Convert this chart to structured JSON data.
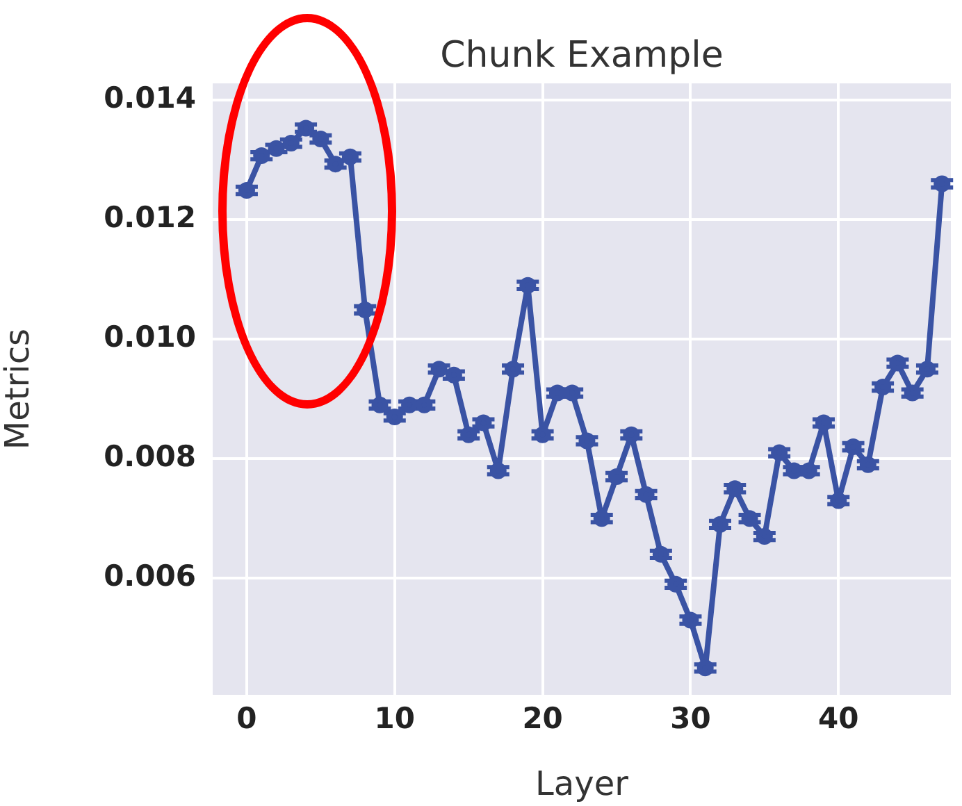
{
  "chart_data": {
    "type": "line",
    "title": "Chunk Example",
    "xlabel": "Layer",
    "ylabel": "Metrics",
    "x": [
      0,
      1,
      2,
      3,
      4,
      5,
      6,
      7,
      8,
      9,
      10,
      11,
      12,
      13,
      14,
      15,
      16,
      17,
      18,
      19,
      20,
      21,
      22,
      23,
      24,
      25,
      26,
      27,
      28,
      29,
      30,
      31,
      32,
      33,
      34,
      35,
      36,
      37,
      38,
      39,
      40,
      41,
      42,
      43,
      44,
      45,
      46,
      47
    ],
    "series": [
      {
        "color": "#3a53a4",
        "values": [
          0.01249,
          0.01307,
          0.01319,
          0.01328,
          0.01353,
          0.01335,
          0.01293,
          0.01305,
          0.01049,
          0.0089,
          0.0087,
          0.0089,
          0.0089,
          0.0095,
          0.0094,
          0.0084,
          0.0086,
          0.0078,
          0.0095,
          0.0109,
          0.0084,
          0.0091,
          0.0091,
          0.0083,
          0.007,
          0.0077,
          0.0084,
          0.0074,
          0.0064,
          0.0059,
          0.0053,
          0.0045,
          0.0069,
          0.0075,
          0.007,
          0.0067,
          0.0081,
          0.0078,
          0.0078,
          0.0086,
          0.0073,
          0.0082,
          0.0079,
          0.0092,
          0.0096,
          0.0091,
          0.0095,
          0.0126
        ],
        "errors": [
          6e-05,
          6e-05,
          6e-05,
          6e-05,
          6e-05,
          6e-05,
          6e-05,
          6e-05,
          6e-05,
          6e-05,
          6e-05,
          6e-05,
          6e-05,
          6e-05,
          6e-05,
          6e-05,
          6e-05,
          6e-05,
          6e-05,
          6e-05,
          6e-05,
          6e-05,
          6e-05,
          6e-05,
          6e-05,
          6e-05,
          6e-05,
          6e-05,
          6e-05,
          6e-05,
          6e-05,
          6e-05,
          6e-05,
          6e-05,
          6e-05,
          6e-05,
          6e-05,
          6e-05,
          6e-05,
          6e-05,
          6e-05,
          6e-05,
          6e-05,
          6e-05,
          6e-05,
          6e-05,
          6e-05,
          6e-05
        ]
      }
    ],
    "xlim": [
      -2.3,
      47.6
    ],
    "xticks": [
      0,
      10,
      20,
      30,
      40
    ],
    "ylim": [
      0.00405,
      0.01428
    ],
    "yticks": [
      0.006,
      0.008,
      {
        "value": 0.01,
        "label": "0.010"
      },
      0.012,
      0.014
    ],
    "grid": true,
    "marker": "circle",
    "line_style": "solid"
  }
}
